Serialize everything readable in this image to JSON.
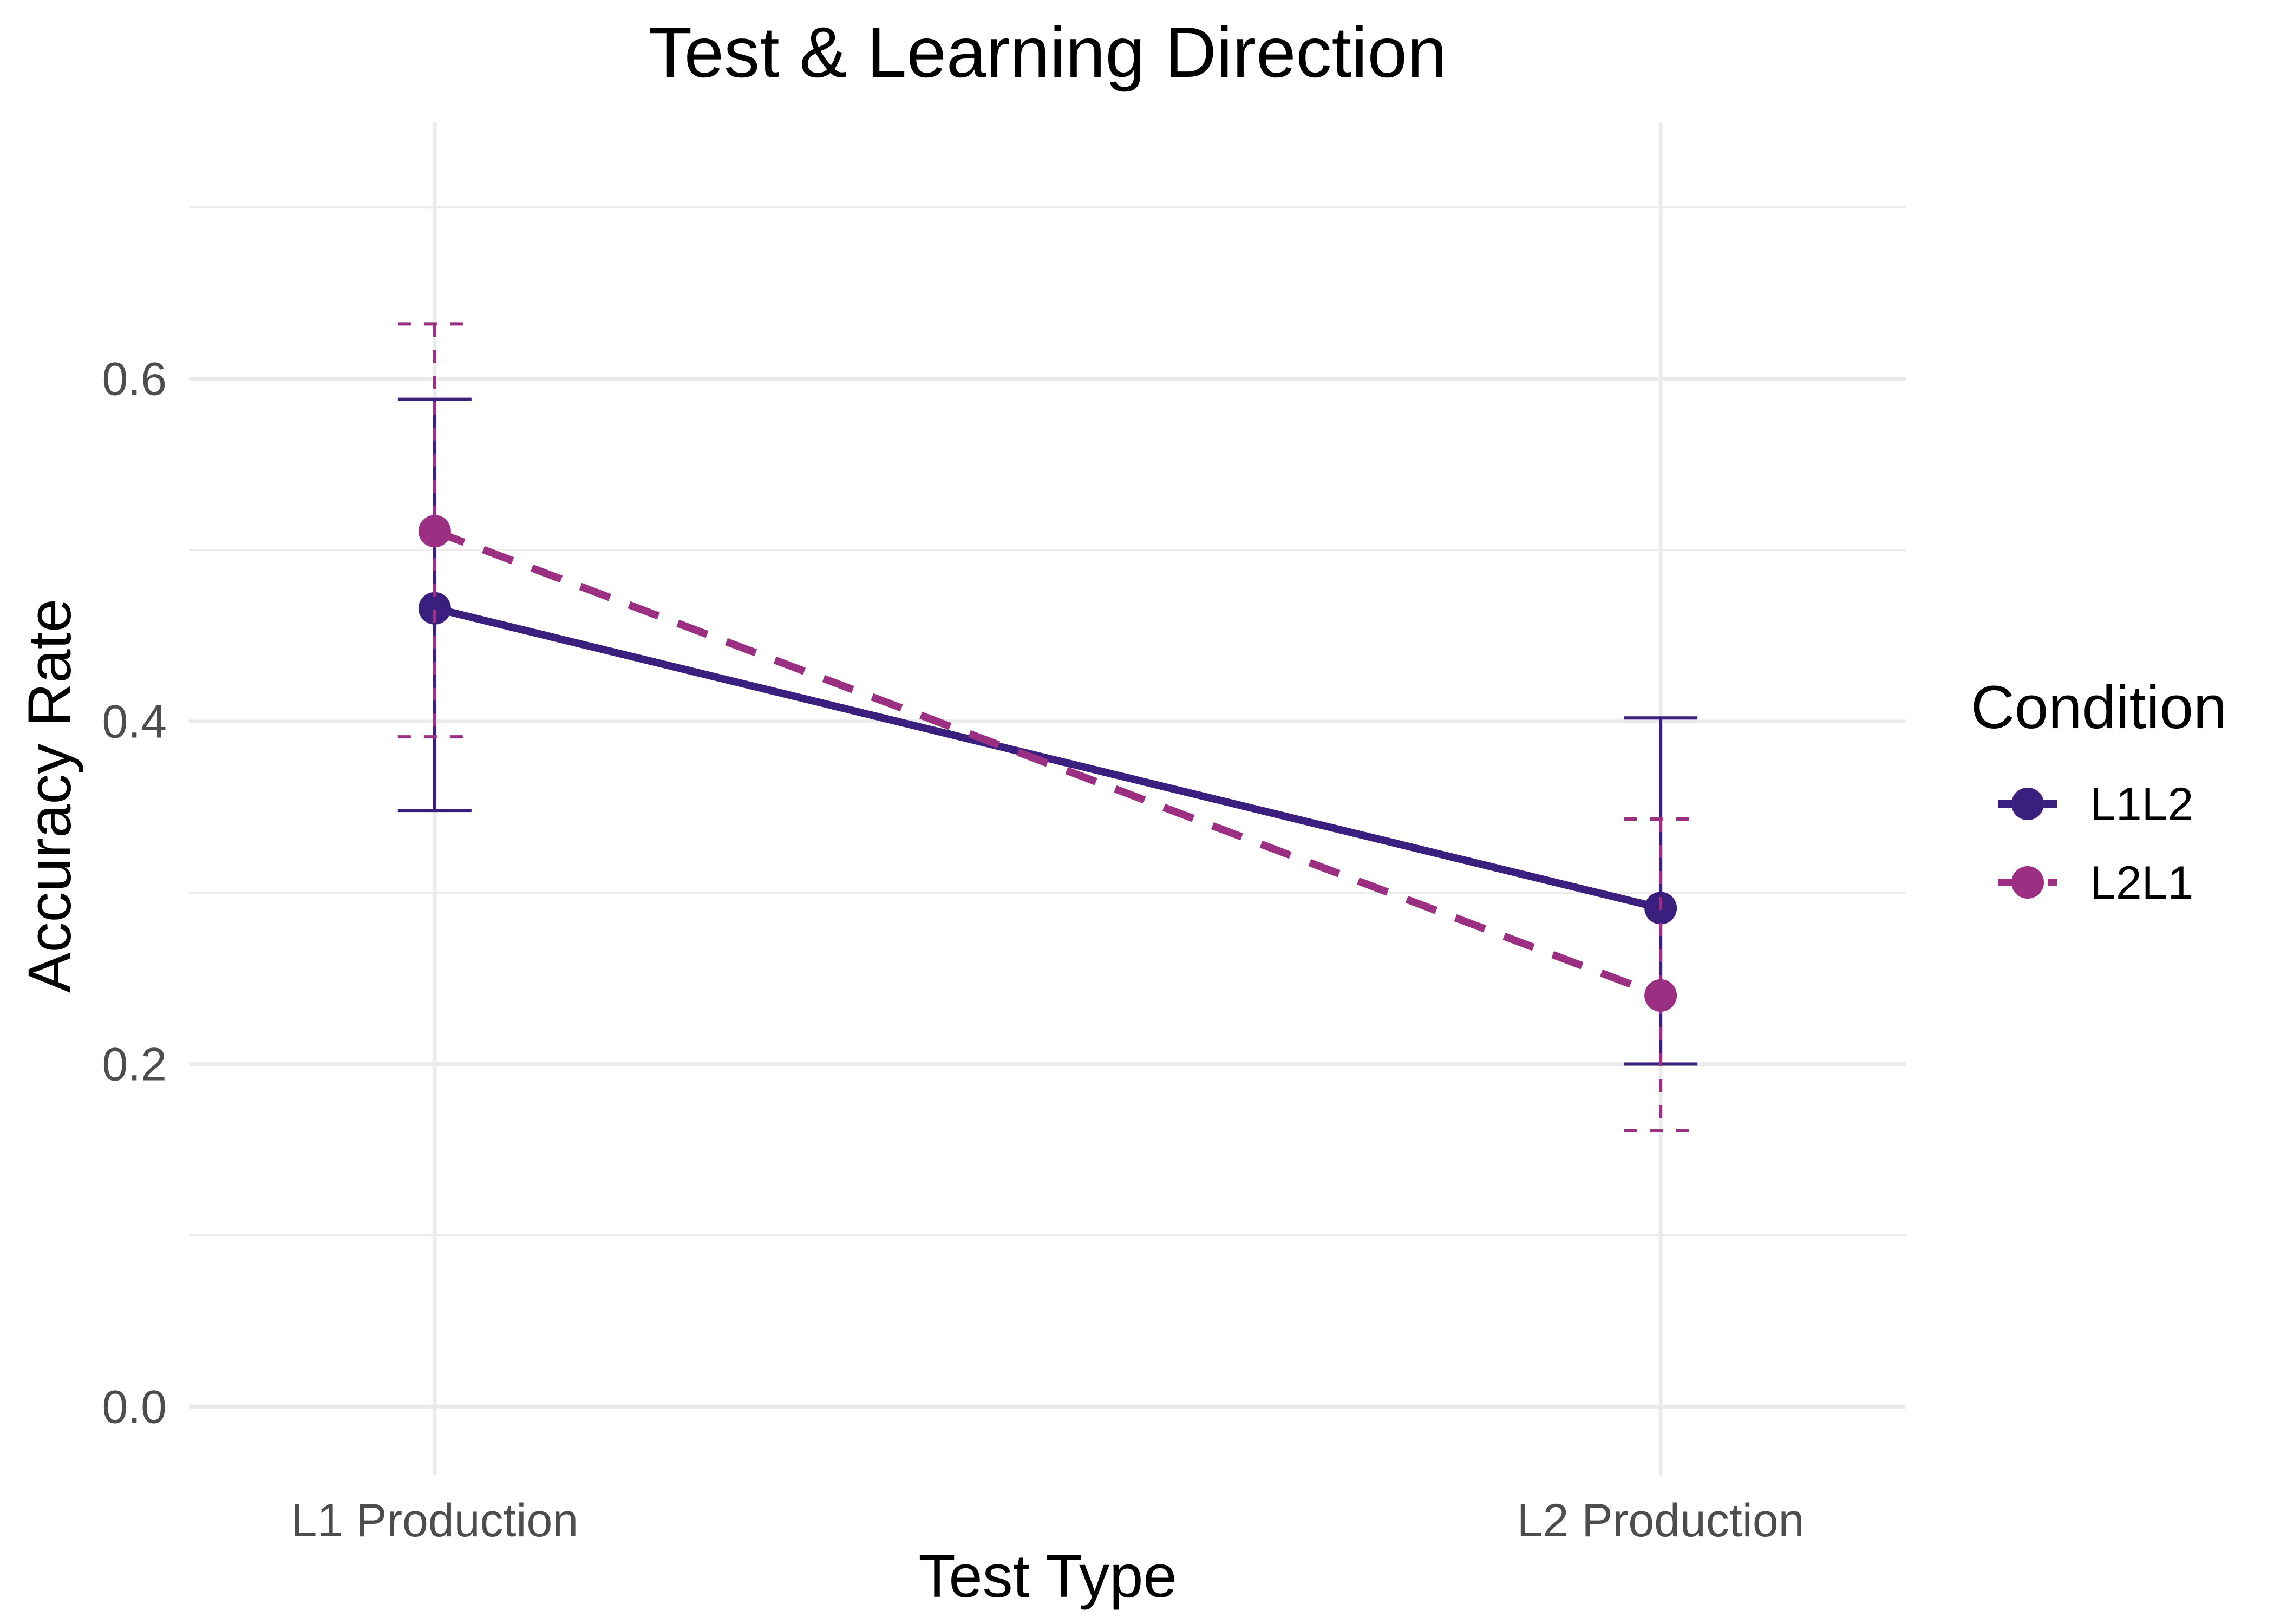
{
  "chart_data": {
    "type": "line",
    "title": "Test & Learning Direction",
    "xlabel": "Test Type",
    "ylabel": "Accuracy Rate",
    "categories": [
      "L1 Production",
      "L2 Production"
    ],
    "ylim": [
      -0.04,
      0.75
    ],
    "y_ticks": [
      0.0,
      0.2,
      0.4,
      0.6
    ],
    "y_tick_labels": [
      "0.0",
      "0.2",
      "0.4",
      "0.6"
    ],
    "y_minor_ticks": [
      0.1,
      0.3,
      0.5,
      0.7
    ],
    "grid": true,
    "legend": {
      "title": "Condition",
      "position": "right"
    },
    "series": [
      {
        "name": "L1L2",
        "color": "#3b1f7e",
        "line_style": "solid",
        "values": [
          0.466,
          0.291
        ],
        "error_lower": [
          0.348,
          0.2
        ],
        "error_upper": [
          0.588,
          0.402
        ]
      },
      {
        "name": "L2L1",
        "color": "#9b3083",
        "line_style": "dashed",
        "values": [
          0.511,
          0.24
        ],
        "error_lower": [
          0.391,
          0.161
        ],
        "error_upper": [
          0.632,
          0.343
        ]
      }
    ]
  }
}
